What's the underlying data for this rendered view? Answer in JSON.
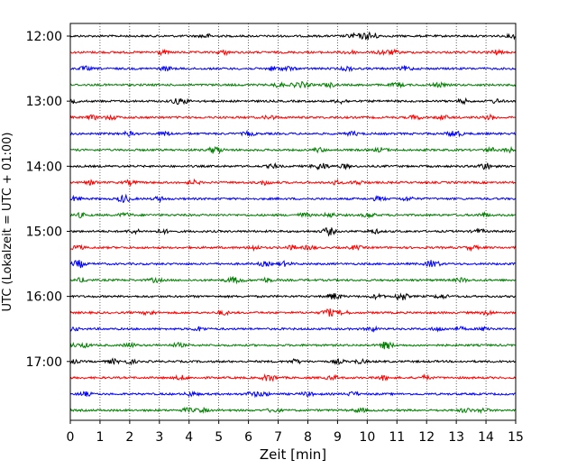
{
  "chart_data": {
    "type": "line",
    "title": "",
    "xlabel": "Zeit  [min]",
    "ylabel": "UTC (Lokalzeit = UTC + 01:00)",
    "xlim": [
      0,
      15
    ],
    "x_ticks": [
      0,
      1,
      2,
      3,
      4,
      5,
      6,
      7,
      8,
      9,
      10,
      11,
      12,
      13,
      14,
      15
    ],
    "y_ticks": [
      "12:00",
      "13:00",
      "14:00",
      "15:00",
      "16:00",
      "17:00"
    ],
    "grid": "vertical dotted",
    "trace_interval_min": 15,
    "trace_colors": [
      "#000000",
      "#ff0000",
      "#0000ff",
      "#008000"
    ],
    "traces": [
      {
        "start": "12:00",
        "color": "#000000"
      },
      {
        "start": "12:15",
        "color": "#ff0000"
      },
      {
        "start": "12:30",
        "color": "#0000ff"
      },
      {
        "start": "12:45",
        "color": "#008000"
      },
      {
        "start": "13:00",
        "color": "#000000"
      },
      {
        "start": "13:15",
        "color": "#ff0000"
      },
      {
        "start": "13:30",
        "color": "#0000ff"
      },
      {
        "start": "13:45",
        "color": "#008000"
      },
      {
        "start": "14:00",
        "color": "#000000"
      },
      {
        "start": "14:15",
        "color": "#ff0000"
      },
      {
        "start": "14:30",
        "color": "#0000ff"
      },
      {
        "start": "14:45",
        "color": "#008000"
      },
      {
        "start": "15:00",
        "color": "#000000"
      },
      {
        "start": "15:15",
        "color": "#ff0000"
      },
      {
        "start": "15:30",
        "color": "#0000ff"
      },
      {
        "start": "15:45",
        "color": "#008000"
      },
      {
        "start": "16:00",
        "color": "#000000"
      },
      {
        "start": "16:15",
        "color": "#ff0000"
      },
      {
        "start": "16:30",
        "color": "#0000ff"
      },
      {
        "start": "16:45",
        "color": "#008000"
      },
      {
        "start": "17:00",
        "color": "#000000"
      },
      {
        "start": "17:15",
        "color": "#ff0000"
      },
      {
        "start": "17:30",
        "color": "#0000ff"
      },
      {
        "start": "17:45",
        "color": "#008000"
      }
    ]
  }
}
